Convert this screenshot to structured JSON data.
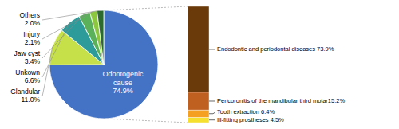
{
  "chart_data": [
    {
      "type": "pie",
      "categories": [
        "Odontogenic\ncause\n74.9%",
        "Glandular\n11.0%",
        "Unkown\n6.6%",
        "Jaw cyst\n3.4%",
        "Injury\n2.1%",
        "Others\n2.0%"
      ],
      "values": [
        74.9,
        11.0,
        6.6,
        3.4,
        2.1,
        2.0
      ],
      "colors": [
        "#4472C4",
        "#C6E04A",
        "#2E9B9B",
        "#5BB05A",
        "#8DC63F",
        "#2D6A2D"
      ]
    },
    {
      "type": "bar",
      "stacked": true,
      "categories": [
        null
      ],
      "series": [
        {
          "name": "Ill-fitting prostheses 4.5%",
          "color": "#F5E030",
          "values": [
            4.5
          ]
        },
        {
          "name": "Tooth extraction 6.4%",
          "color": "#F5A020",
          "values": [
            6.4
          ]
        },
        {
          "name": "Pericoronitis of the mandibular third molar15.2%",
          "color": "#C06020",
          "values": [
            15.2
          ]
        },
        {
          "name": "Endodontic and periodontal diseases 73.9%",
          "color": "#6B3A0A",
          "values": [
            73.9
          ]
        }
      ],
      "ylim": [
        0,
        100
      ],
      "tick_labels": false
    }
  ]
}
